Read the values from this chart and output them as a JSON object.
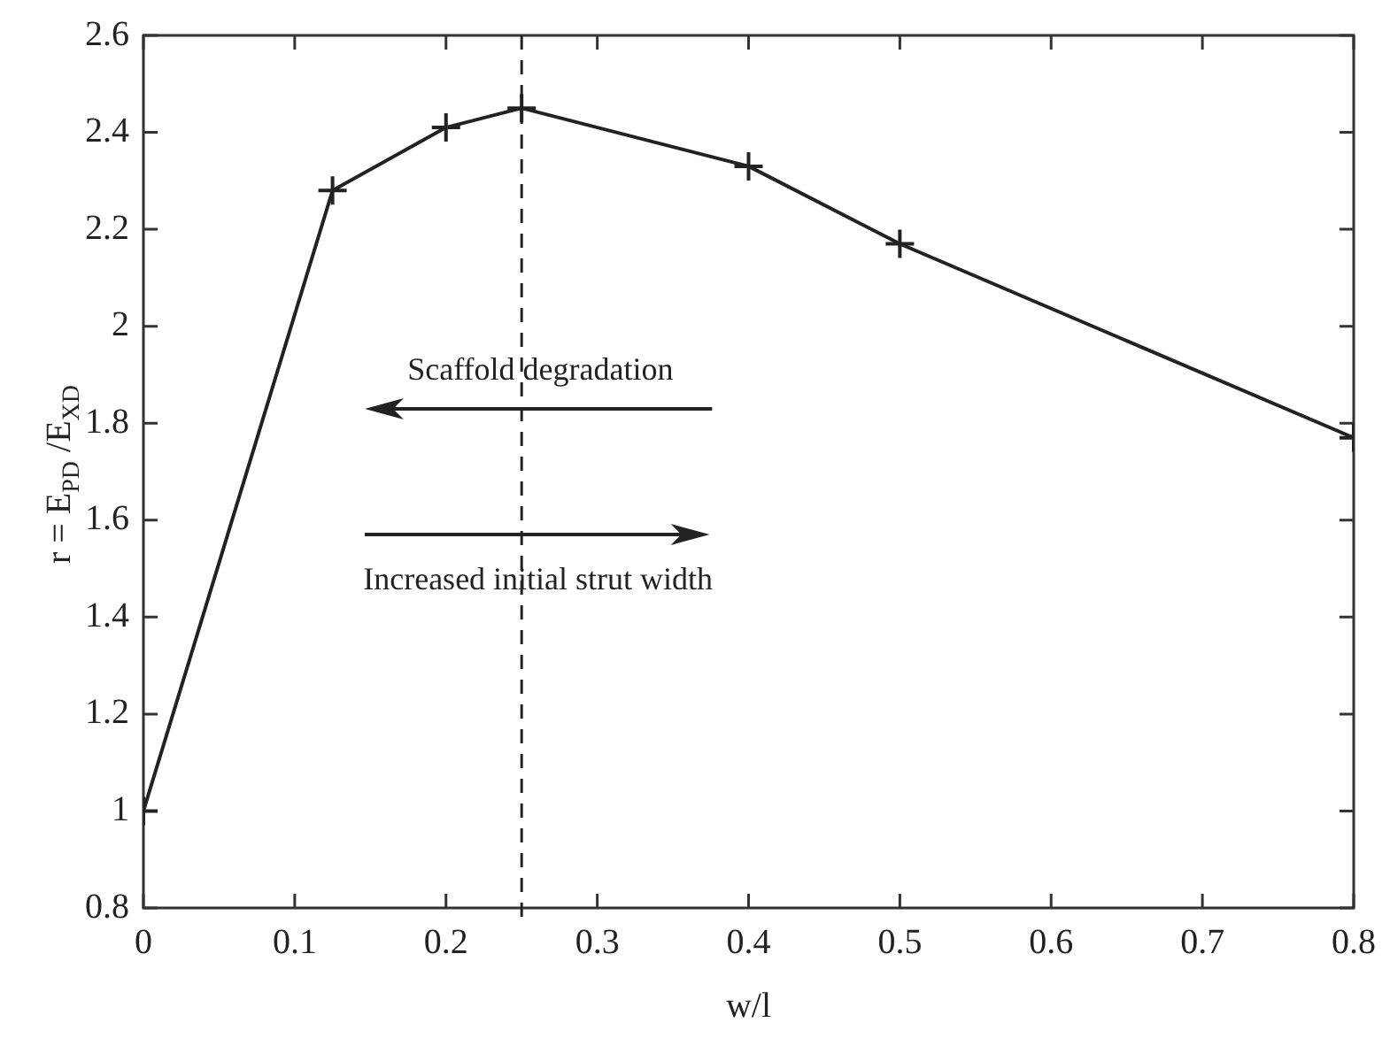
{
  "chart_data": {
    "type": "line",
    "xlabel": "w/l",
    "ylabel": "r = E$_{PD}$ /E$_{XD}$",
    "x": [
      0,
      0.125,
      0.2,
      0.25,
      0.4,
      0.5,
      0.8
    ],
    "values": [
      1.0,
      2.28,
      2.41,
      2.45,
      2.33,
      2.17,
      1.77
    ],
    "color": "#222222",
    "marker": "cross",
    "line_style": "solid",
    "grid": false,
    "legend": false,
    "xlim": [
      0,
      0.8
    ],
    "xticks": [
      0,
      0.1,
      0.2,
      0.3,
      0.4,
      0.5,
      0.6,
      0.7,
      0.8
    ],
    "ylim": [
      0.8,
      2.6
    ],
    "yticks": [
      0.8,
      1,
      1.2,
      1.4,
      1.6,
      1.8,
      2,
      2.2,
      2.4,
      2.6
    ],
    "ref_lines": [
      {
        "axis": "x",
        "value": 0.25,
        "color": "#222222",
        "line_style": "dashed"
      }
    ],
    "annotations": [
      "Scaffold degradation",
      "Increased initial strut width"
    ]
  }
}
